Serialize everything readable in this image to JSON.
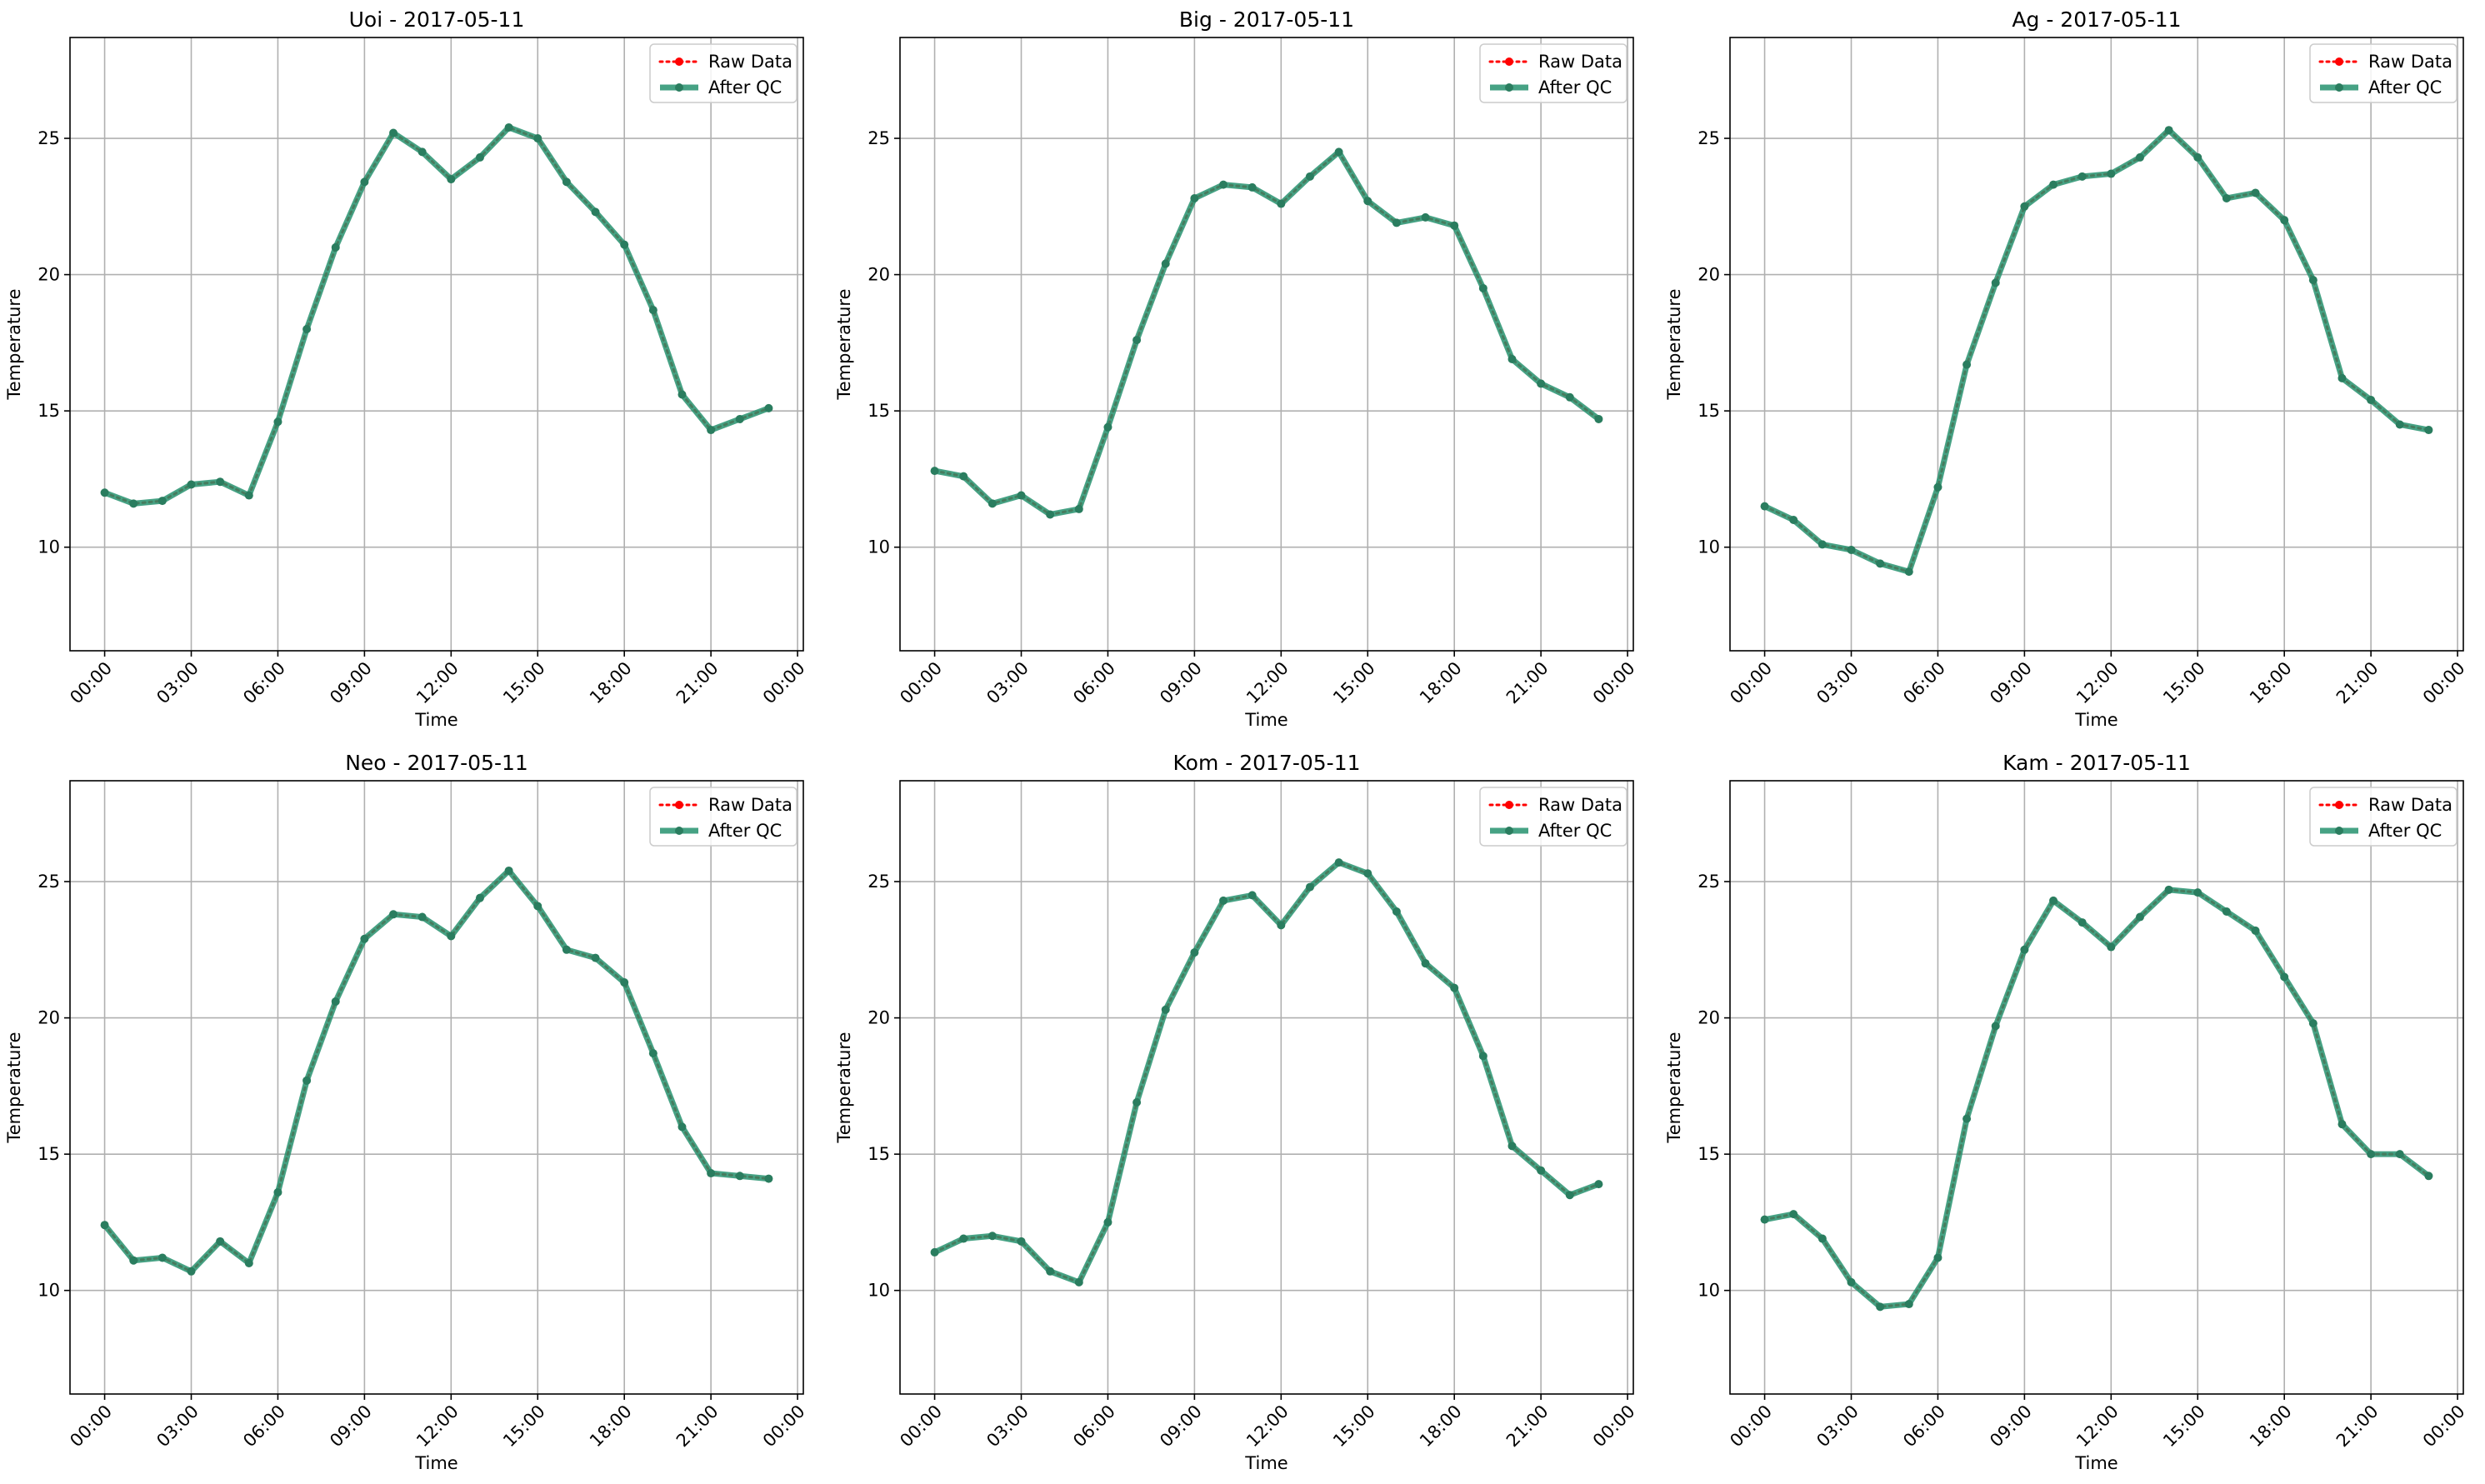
{
  "x_ticks": [
    "00:00",
    "03:00",
    "06:00",
    "09:00",
    "12:00",
    "15:00",
    "18:00",
    "21:00",
    "00:00"
  ],
  "y_ticks": [
    10,
    15,
    20,
    25
  ],
  "ylim": [
    6.2,
    28.7
  ],
  "xlim_hours": [
    -1.2,
    24.2
  ],
  "xlabel": "Time",
  "ylabel": "Temperature",
  "legend": {
    "placement": "top-right",
    "raw_label": "Raw Data",
    "qc_label": "After QC",
    "raw_color": "#ff0000",
    "qc_color": "#26926e",
    "qc_marker_color": "#2a7d5f"
  },
  "grid": true,
  "chart_data": [
    {
      "type": "line",
      "title": "Uoi - 2017-05-11",
      "x": [
        "00:00",
        "01:00",
        "02:00",
        "03:00",
        "04:00",
        "05:00",
        "06:00",
        "07:00",
        "08:00",
        "09:00",
        "10:00",
        "11:00",
        "12:00",
        "13:00",
        "14:00",
        "15:00",
        "16:00",
        "17:00",
        "18:00",
        "19:00",
        "20:00",
        "21:00",
        "22:00",
        "23:00"
      ],
      "series": [
        {
          "name": "Raw Data",
          "values": [
            12.0,
            11.6,
            11.7,
            12.3,
            12.4,
            11.9,
            14.6,
            18.0,
            21.0,
            23.4,
            25.2,
            24.5,
            23.5,
            24.3,
            25.4,
            25.0,
            23.4,
            22.3,
            21.1,
            18.7,
            15.6,
            14.3,
            14.7,
            15.1
          ]
        },
        {
          "name": "After QC",
          "values": [
            12.0,
            11.6,
            11.7,
            12.3,
            12.4,
            11.9,
            14.6,
            18.0,
            21.0,
            23.4,
            25.2,
            24.5,
            23.5,
            24.3,
            25.4,
            25.0,
            23.4,
            22.3,
            21.1,
            18.7,
            15.6,
            14.3,
            14.7,
            15.1
          ]
        }
      ]
    },
    {
      "type": "line",
      "title": "Big - 2017-05-11",
      "x": [
        "00:00",
        "01:00",
        "02:00",
        "03:00",
        "04:00",
        "05:00",
        "06:00",
        "07:00",
        "08:00",
        "09:00",
        "10:00",
        "11:00",
        "12:00",
        "13:00",
        "14:00",
        "15:00",
        "16:00",
        "17:00",
        "18:00",
        "19:00",
        "20:00",
        "21:00",
        "22:00",
        "23:00"
      ],
      "series": [
        {
          "name": "Raw Data",
          "values": [
            12.8,
            12.6,
            11.6,
            11.9,
            11.2,
            11.4,
            14.4,
            17.6,
            20.4,
            22.8,
            23.3,
            23.2,
            22.6,
            23.6,
            24.5,
            22.7,
            21.9,
            22.1,
            21.8,
            19.5,
            16.9,
            16.0,
            15.5,
            14.7
          ]
        },
        {
          "name": "After QC",
          "values": [
            12.8,
            12.6,
            11.6,
            11.9,
            11.2,
            11.4,
            14.4,
            17.6,
            20.4,
            22.8,
            23.3,
            23.2,
            22.6,
            23.6,
            24.5,
            22.7,
            21.9,
            22.1,
            21.8,
            19.5,
            16.9,
            16.0,
            15.5,
            14.7
          ]
        }
      ]
    },
    {
      "type": "line",
      "title": "Ag - 2017-05-11",
      "x": [
        "00:00",
        "01:00",
        "02:00",
        "03:00",
        "04:00",
        "05:00",
        "06:00",
        "07:00",
        "08:00",
        "09:00",
        "10:00",
        "11:00",
        "12:00",
        "13:00",
        "14:00",
        "15:00",
        "16:00",
        "17:00",
        "18:00",
        "19:00",
        "20:00",
        "21:00",
        "22:00",
        "23:00"
      ],
      "series": [
        {
          "name": "Raw Data",
          "values": [
            11.5,
            11.0,
            10.1,
            9.9,
            9.4,
            9.1,
            12.2,
            16.7,
            19.7,
            22.5,
            23.3,
            23.6,
            23.7,
            24.3,
            25.3,
            24.3,
            22.8,
            23.0,
            22.0,
            19.8,
            16.2,
            15.4,
            14.5,
            14.3
          ]
        },
        {
          "name": "After QC",
          "values": [
            11.5,
            11.0,
            10.1,
            9.9,
            9.4,
            9.1,
            12.2,
            16.7,
            19.7,
            22.5,
            23.3,
            23.6,
            23.7,
            24.3,
            25.3,
            24.3,
            22.8,
            23.0,
            22.0,
            19.8,
            16.2,
            15.4,
            14.5,
            14.3
          ]
        }
      ]
    },
    {
      "type": "line",
      "title": "Neo - 2017-05-11",
      "x": [
        "00:00",
        "01:00",
        "02:00",
        "03:00",
        "04:00",
        "05:00",
        "06:00",
        "07:00",
        "08:00",
        "09:00",
        "10:00",
        "11:00",
        "12:00",
        "13:00",
        "14:00",
        "15:00",
        "16:00",
        "17:00",
        "18:00",
        "19:00",
        "20:00",
        "21:00",
        "22:00",
        "23:00"
      ],
      "series": [
        {
          "name": "Raw Data",
          "values": [
            12.4,
            11.1,
            11.2,
            10.7,
            11.8,
            11.0,
            13.6,
            17.7,
            20.6,
            22.9,
            23.8,
            23.7,
            23.0,
            24.4,
            25.4,
            24.1,
            22.5,
            22.2,
            21.3,
            18.7,
            16.0,
            14.3,
            14.2,
            14.1
          ]
        },
        {
          "name": "After QC",
          "values": [
            12.4,
            11.1,
            11.2,
            10.7,
            11.8,
            11.0,
            13.6,
            17.7,
            20.6,
            22.9,
            23.8,
            23.7,
            23.0,
            24.4,
            25.4,
            24.1,
            22.5,
            22.2,
            21.3,
            18.7,
            16.0,
            14.3,
            14.2,
            14.1
          ]
        }
      ]
    },
    {
      "type": "line",
      "title": "Kom - 2017-05-11",
      "x": [
        "00:00",
        "01:00",
        "02:00",
        "03:00",
        "04:00",
        "05:00",
        "06:00",
        "07:00",
        "08:00",
        "09:00",
        "10:00",
        "11:00",
        "12:00",
        "13:00",
        "14:00",
        "15:00",
        "16:00",
        "17:00",
        "18:00",
        "19:00",
        "20:00",
        "21:00",
        "22:00",
        "23:00"
      ],
      "series": [
        {
          "name": "Raw Data",
          "values": [
            11.4,
            11.9,
            12.0,
            11.8,
            10.7,
            10.3,
            12.5,
            16.9,
            20.3,
            22.4,
            24.3,
            24.5,
            23.4,
            24.8,
            25.7,
            25.3,
            23.9,
            22.0,
            21.1,
            18.6,
            15.3,
            14.4,
            13.5,
            13.9
          ]
        },
        {
          "name": "After QC",
          "values": [
            11.4,
            11.9,
            12.0,
            11.8,
            10.7,
            10.3,
            12.5,
            16.9,
            20.3,
            22.4,
            24.3,
            24.5,
            23.4,
            24.8,
            25.7,
            25.3,
            23.9,
            22.0,
            21.1,
            18.6,
            15.3,
            14.4,
            13.5,
            13.9
          ]
        }
      ]
    },
    {
      "type": "line",
      "title": "Kam - 2017-05-11",
      "x": [
        "00:00",
        "01:00",
        "02:00",
        "03:00",
        "04:00",
        "05:00",
        "06:00",
        "07:00",
        "08:00",
        "09:00",
        "10:00",
        "11:00",
        "12:00",
        "13:00",
        "14:00",
        "15:00",
        "16:00",
        "17:00",
        "18:00",
        "19:00",
        "20:00",
        "21:00",
        "22:00",
        "23:00"
      ],
      "series": [
        {
          "name": "Raw Data",
          "values": [
            12.6,
            12.8,
            11.9,
            10.3,
            9.4,
            9.5,
            11.2,
            16.3,
            19.7,
            22.5,
            24.3,
            23.5,
            22.6,
            23.7,
            24.7,
            24.6,
            23.9,
            23.2,
            21.5,
            19.8,
            16.1,
            15.0,
            15.0,
            14.2
          ]
        },
        {
          "name": "After QC",
          "values": [
            12.6,
            12.8,
            11.9,
            10.3,
            9.4,
            9.5,
            11.2,
            16.3,
            19.7,
            22.5,
            24.3,
            23.5,
            22.6,
            23.7,
            24.7,
            24.6,
            23.9,
            23.2,
            21.5,
            19.8,
            16.1,
            15.0,
            15.0,
            14.2
          ]
        }
      ]
    }
  ]
}
